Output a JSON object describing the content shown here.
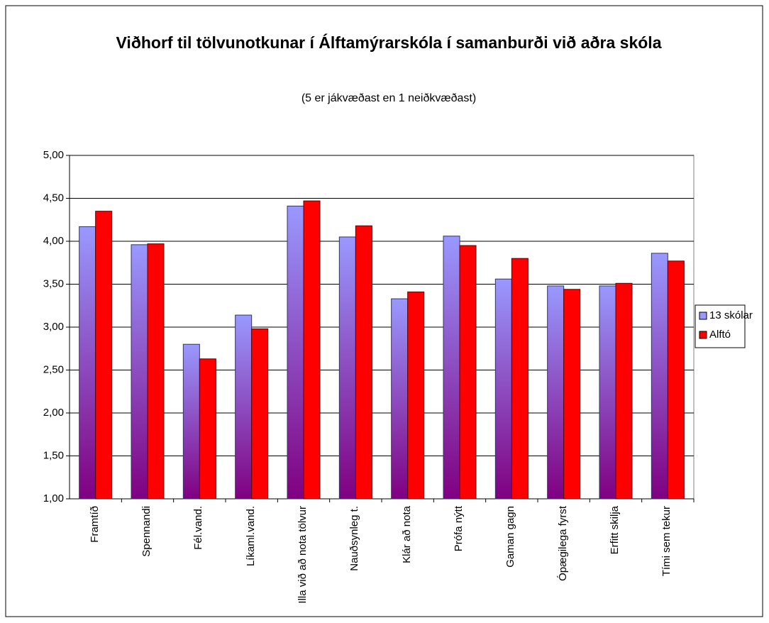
{
  "chart_data": {
    "type": "bar",
    "title": "Viðhorf til tölvunotkunar í Álftamýrarskóla í samanburði við aðra skóla",
    "subtitle": "(5 er jákvæðast en 1 neiðkvæðast)",
    "categories": [
      "Framtíð",
      "Spennandi",
      "Fél.vand.",
      "Líkaml.vand.",
      "Illa við að nota tölvur",
      "Nauðsynleg t.",
      "Klár að nota",
      "Prófa nýtt",
      "Gaman gagn",
      "Ópægilega fyrst",
      "Erfitt skilja",
      "Tími sem tekur"
    ],
    "series": [
      {
        "name": "13 skólar",
        "color": "#9999ff",
        "values": [
          4.17,
          3.96,
          2.8,
          3.14,
          4.41,
          4.05,
          3.33,
          4.06,
          3.56,
          3.48,
          3.48,
          3.86
        ]
      },
      {
        "name": "Alftó",
        "color": "#ff0000",
        "values": [
          4.35,
          3.97,
          2.63,
          2.98,
          4.47,
          4.18,
          3.41,
          3.95,
          3.8,
          3.44,
          3.51,
          3.77
        ]
      }
    ],
    "ylim": [
      1,
      5
    ],
    "yticks": [
      {
        "value": 1,
        "label": "1,00"
      },
      {
        "value": 1.5,
        "label": "1,50"
      },
      {
        "value": 2,
        "label": "2,00"
      },
      {
        "value": 2.5,
        "label": "2,50"
      },
      {
        "value": 3,
        "label": "3,00"
      },
      {
        "value": 3.5,
        "label": "3,50"
      },
      {
        "value": 4,
        "label": "4,00"
      },
      {
        "value": 4.5,
        "label": "4,50"
      },
      {
        "value": 5,
        "label": "5,00"
      }
    ],
    "grid": true,
    "legend": "right"
  }
}
